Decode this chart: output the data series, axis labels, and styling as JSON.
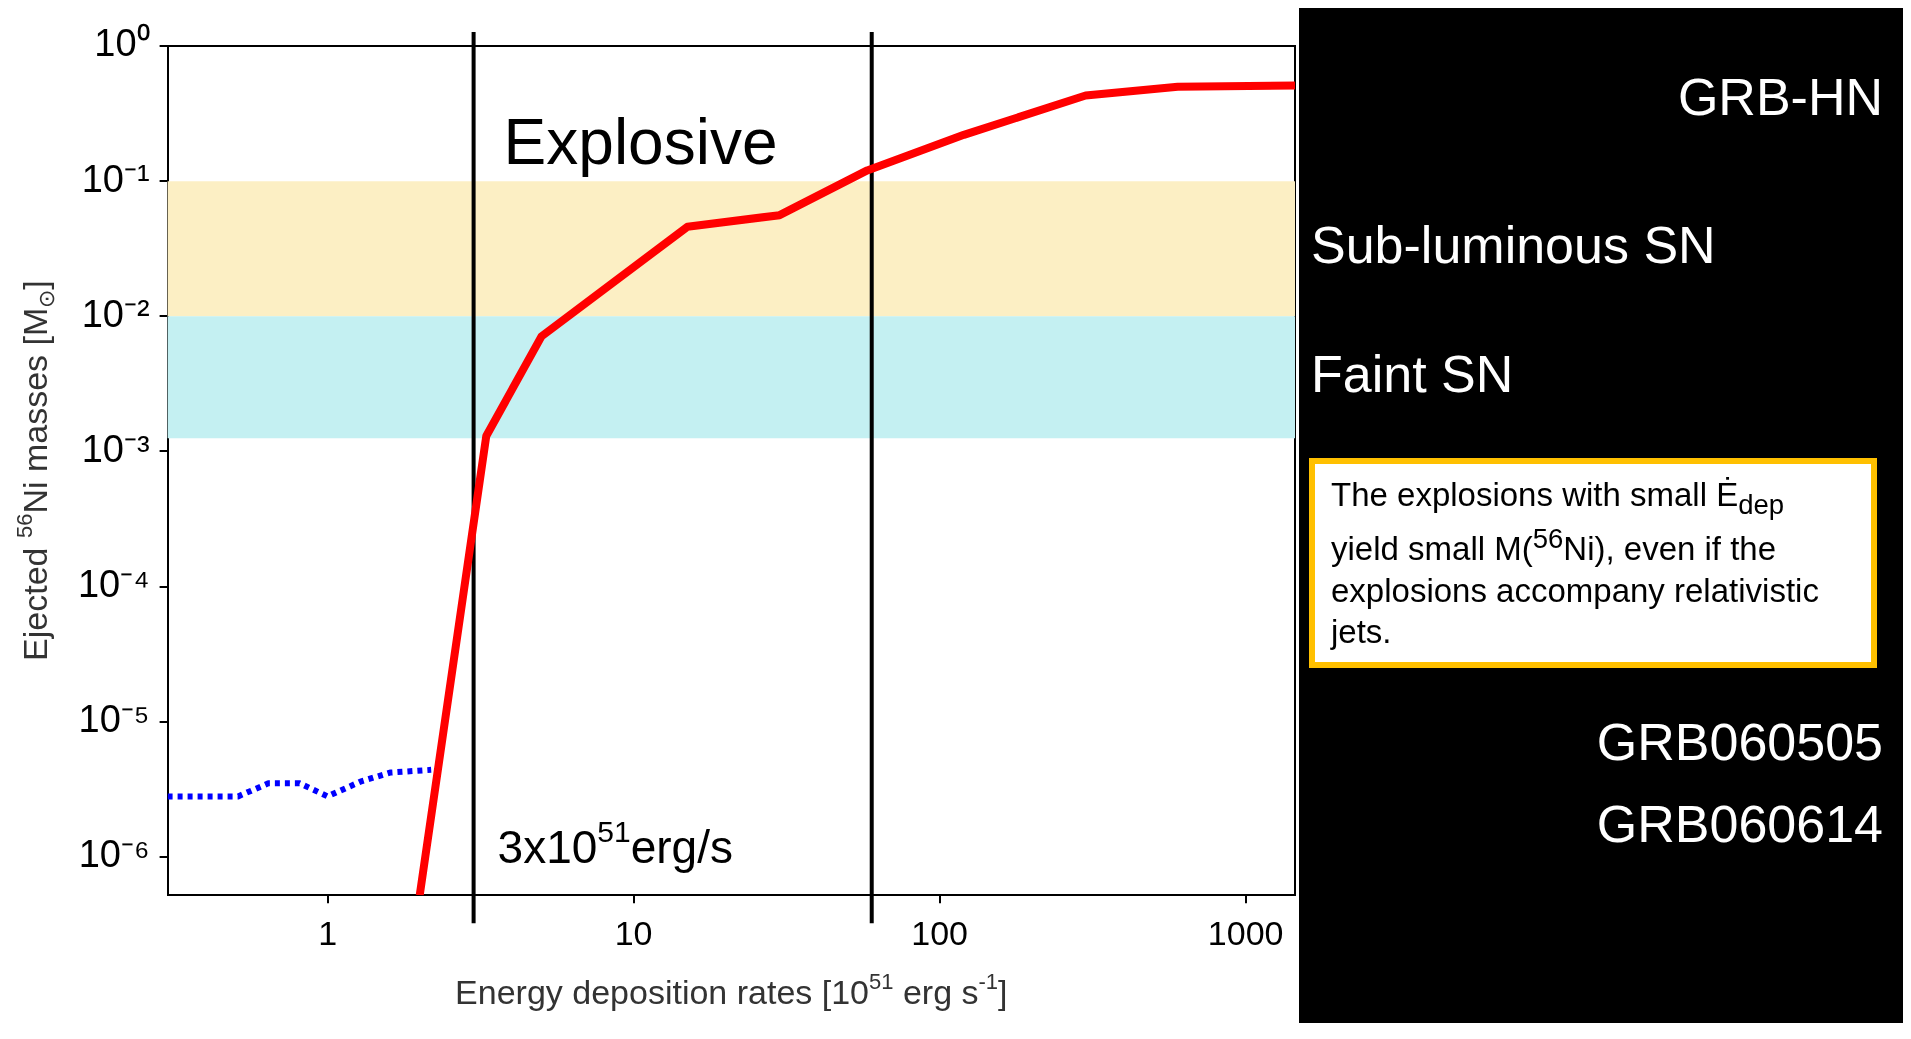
{
  "chart_data": {
    "type": "line",
    "xlabel": "Energy deposition rates [10$^{51}$ erg s$^{-1}$]",
    "ylabel": "Ejected $^{56}$Ni masses [M$_{⊙}$]",
    "log": "xy",
    "xlim": [
      0.3,
      1450
    ],
    "xticks": [
      1,
      10,
      100,
      1000
    ],
    "ylim": [
      5.2e-07,
      1
    ],
    "yticks": [
      {
        "value": 1,
        "label": "10⁰"
      },
      {
        "value": 0.1,
        "label": "10⁻¹"
      },
      {
        "value": 0.01,
        "label": "10⁻²"
      },
      {
        "value": 0.001,
        "label": "10⁻³"
      },
      {
        "value": 0.0001,
        "label": "10⁻⁴"
      },
      {
        "value": 1e-05,
        "label": "10⁻⁵"
      },
      {
        "value": 1e-06,
        "label": "10⁻⁶"
      }
    ],
    "series": [
      {
        "color": "#ff0000",
        "line_style": "solid",
        "x": [
          2.0,
          3.3,
          5,
          15,
          30,
          58,
          120,
          300,
          600,
          1450
        ],
        "values": [
          5.2e-07,
          0.0013,
          0.0071,
          0.046,
          0.056,
          0.12,
          0.22,
          0.43,
          0.5,
          0.51
        ]
      },
      {
        "color": "#0000ff",
        "line_style": "dotted",
        "x": [
          0.3,
          0.51,
          0.64,
          0.81,
          1.0,
          1.28,
          1.6,
          2.18
        ],
        "values": [
          2.8e-06,
          2.8e-06,
          3.5e-06,
          3.5e-06,
          2.8e-06,
          3.6e-06,
          4.2e-06,
          4.4e-06
        ]
      }
    ],
    "marker": "none",
    "grid": false,
    "ref_lines": [
      {
        "axis": "x",
        "value": 3,
        "label": "3x10$^{51}$erg/s",
        "color": "#000000"
      },
      {
        "axis": "x",
        "value": 60,
        "color": "#000000"
      }
    ],
    "bands": [
      {
        "axis": "y",
        "from": 0.01,
        "to": 0.1,
        "label": "Sub-luminous SN",
        "color": "#fcefc4"
      },
      {
        "axis": "y",
        "from": 0.00125,
        "to": 0.01,
        "label": "Faint SN",
        "color": "#c4f0f2"
      }
    ],
    "annotations": [
      "Explosive",
      "GRB-HN",
      "GRB060505",
      "GRB060614",
      "The explosions with small Ė$_{dep}$ yield small M($^{56}$Ni), even if the explosions accompany relativistic jets."
    ]
  }
}
